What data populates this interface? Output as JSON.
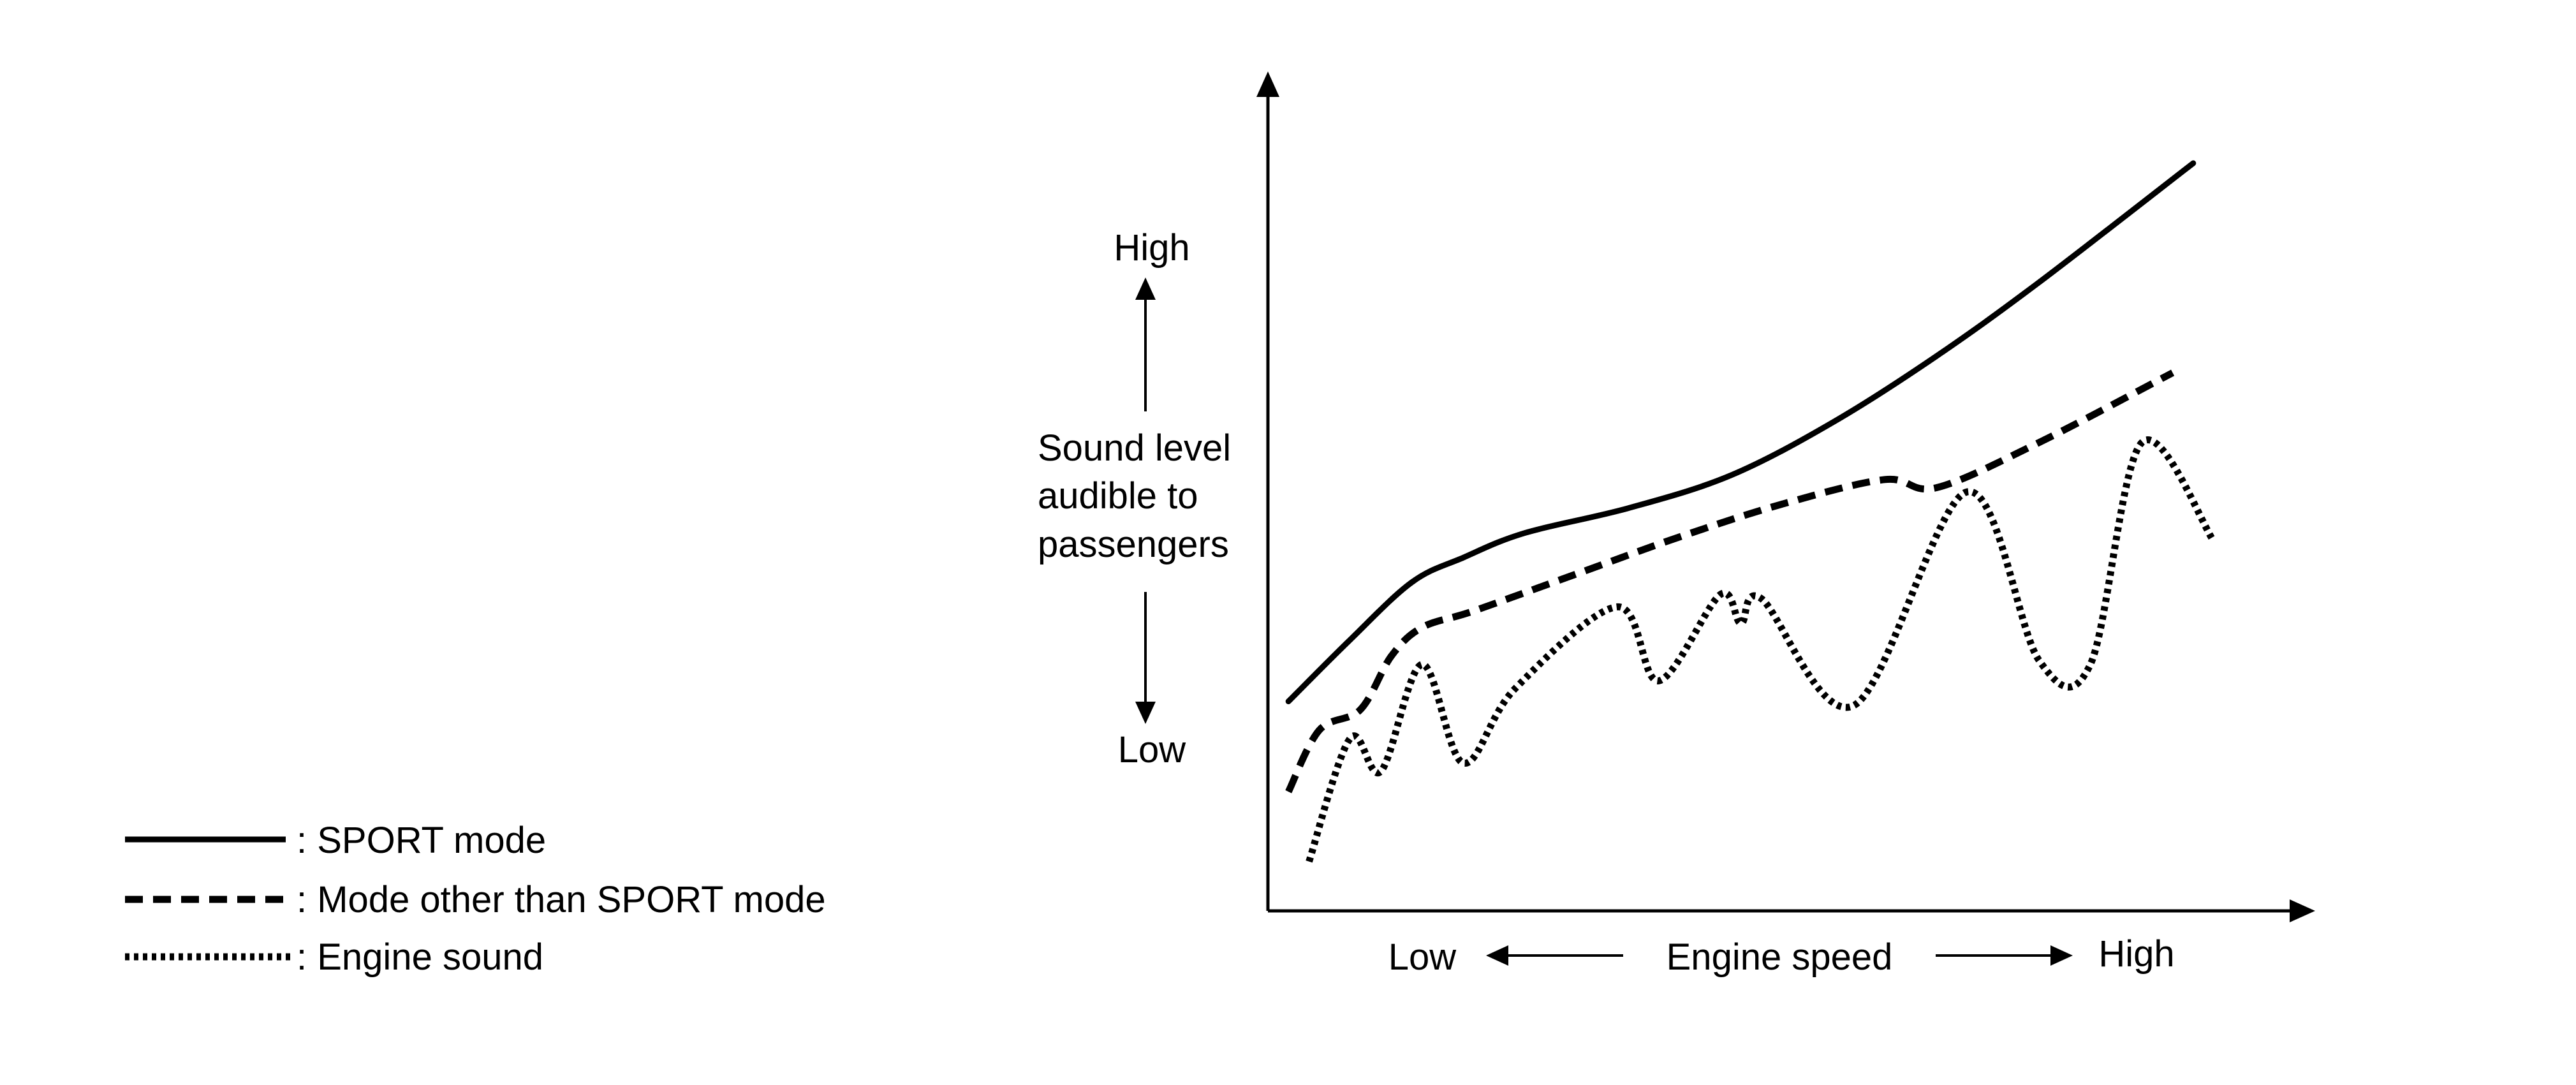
{
  "chart_data": {
    "type": "line",
    "title": "",
    "x_axis": {
      "label": "Engine speed",
      "low_label": "Low",
      "high_label": "High",
      "range": [
        0,
        100
      ]
    },
    "y_axis": {
      "label_lines": [
        "Sound level",
        "audible to",
        "passengers"
      ],
      "low_label": "Low",
      "high_label": "High",
      "range": [
        0,
        100
      ]
    },
    "grid": false,
    "legend_placement": "bottom-left",
    "series": [
      {
        "name": ": SPORT mode",
        "style": "solid",
        "color": "#000000",
        "points": [
          [
            2,
            25.5
          ],
          [
            8,
            33
          ],
          [
            14,
            40
          ],
          [
            19,
            43
          ],
          [
            25,
            46
          ],
          [
            35,
            49
          ],
          [
            45,
            53
          ],
          [
            55,
            59.5
          ],
          [
            65,
            67.5
          ],
          [
            75,
            76.5
          ],
          [
            90,
            91
          ]
        ]
      },
      {
        "name": ": Mode other than SPORT mode",
        "style": "dashed",
        "color": "#000000",
        "points": [
          [
            2,
            14.5
          ],
          [
            5,
            22
          ],
          [
            9,
            24.5
          ],
          [
            12,
            31
          ],
          [
            15,
            34.5
          ],
          [
            20,
            36.5
          ],
          [
            30,
            41
          ],
          [
            40,
            45.5
          ],
          [
            50,
            49.5
          ],
          [
            60,
            52.5
          ],
          [
            65,
            51.5
          ],
          [
            75,
            57
          ],
          [
            88,
            65.5
          ]
        ]
      },
      {
        "name": ": Engine sound",
        "style": "dotted",
        "color": "#000000",
        "points": [
          [
            4,
            6
          ],
          [
            8,
            21
          ],
          [
            11,
            17
          ],
          [
            15,
            30
          ],
          [
            19,
            18
          ],
          [
            24,
            27
          ],
          [
            34,
            37
          ],
          [
            38,
            28
          ],
          [
            44,
            38.5
          ],
          [
            46,
            35
          ],
          [
            48,
            38
          ],
          [
            57,
            25
          ],
          [
            68,
            51
          ],
          [
            75,
            30.5
          ],
          [
            80,
            30
          ],
          [
            85,
            57
          ],
          [
            92,
            45
          ]
        ]
      }
    ]
  }
}
